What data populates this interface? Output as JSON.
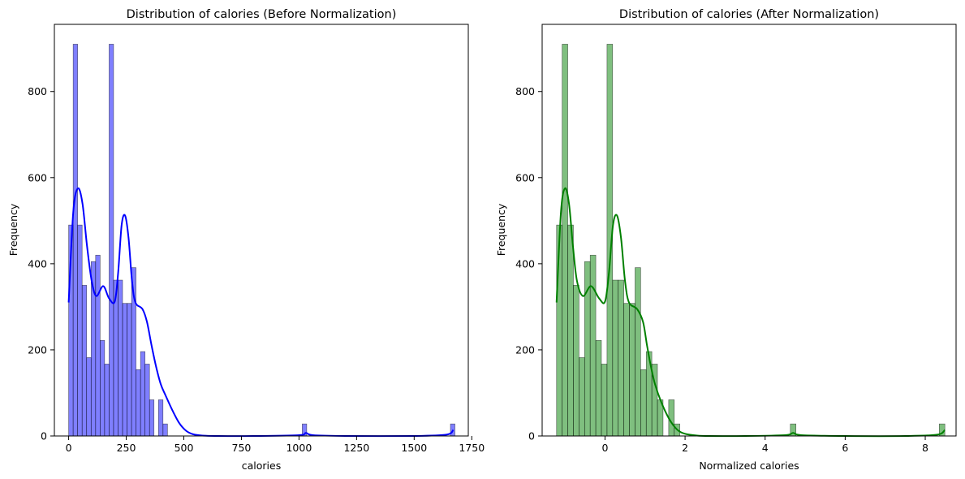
{
  "figure": {
    "background": "#ffffff"
  },
  "chart_data": [
    {
      "type": "bar",
      "subtype": "histogram-with-kde",
      "title": "Distribution of calories (Before Normalization)",
      "xlabel": "calories",
      "ylabel": "Frequency",
      "xlim": [
        -62,
        1735
      ],
      "ylim": [
        0,
        956
      ],
      "xticks": [
        0,
        250,
        500,
        750,
        1000,
        1250,
        1500,
        1750
      ],
      "yticks": [
        0,
        200,
        400,
        600,
        800
      ],
      "grid": false,
      "bar_color": "#0000ff",
      "bar_opacity": 0.5,
      "kde_color": "#0000ff",
      "bins": [
        {
          "x0": 0,
          "x1": 19.5,
          "count": 490
        },
        {
          "x0": 19.5,
          "x1": 39,
          "count": 910
        },
        {
          "x0": 39,
          "x1": 58.5,
          "count": 490
        },
        {
          "x0": 58.5,
          "x1": 78,
          "count": 350
        },
        {
          "x0": 78,
          "x1": 97.5,
          "count": 182
        },
        {
          "x0": 97.5,
          "x1": 117,
          "count": 405
        },
        {
          "x0": 117,
          "x1": 136.5,
          "count": 420
        },
        {
          "x0": 136.5,
          "x1": 156,
          "count": 222
        },
        {
          "x0": 156,
          "x1": 175.5,
          "count": 167
        },
        {
          "x0": 175.5,
          "x1": 195,
          "count": 910
        },
        {
          "x0": 195,
          "x1": 214.5,
          "count": 362
        },
        {
          "x0": 214.5,
          "x1": 234,
          "count": 362
        },
        {
          "x0": 234,
          "x1": 253.5,
          "count": 308
        },
        {
          "x0": 253.5,
          "x1": 273,
          "count": 308
        },
        {
          "x0": 273,
          "x1": 292.5,
          "count": 391
        },
        {
          "x0": 292.5,
          "x1": 312,
          "count": 154
        },
        {
          "x0": 312,
          "x1": 331.5,
          "count": 196
        },
        {
          "x0": 331.5,
          "x1": 351,
          "count": 167
        },
        {
          "x0": 351,
          "x1": 370.5,
          "count": 84
        },
        {
          "x0": 390,
          "x1": 409.5,
          "count": 84
        },
        {
          "x0": 409.5,
          "x1": 429,
          "count": 28
        },
        {
          "x0": 1014,
          "x1": 1033.5,
          "count": 28
        },
        {
          "x0": 1657.5,
          "x1": 1677,
          "count": 28
        }
      ],
      "kde": {
        "x": [
          0,
          20,
          40,
          60,
          80,
          100,
          120,
          150,
          175,
          200,
          215,
          230,
          245,
          260,
          275,
          290,
          320,
          340,
          360,
          380,
          400,
          420,
          450,
          480,
          510,
          540,
          580,
          650,
          800,
          1000,
          1030,
          1060,
          1200,
          1500,
          1640,
          1670
        ],
        "y": [
          310,
          520,
          575,
          540,
          440,
          360,
          325,
          348,
          320,
          312,
          380,
          490,
          512,
          460,
          360,
          310,
          295,
          265,
          210,
          160,
          120,
          95,
          60,
          30,
          12,
          4,
          1,
          0,
          0,
          2,
          7,
          2,
          0,
          0,
          3,
          14
        ]
      }
    },
    {
      "type": "bar",
      "subtype": "histogram-with-kde",
      "title": "Distribution of calories (After Normalization)",
      "xlabel": "Normalized calories",
      "ylabel": "Frequency",
      "xlim": [
        -1.57,
        8.77
      ],
      "ylim": [
        0,
        956
      ],
      "xticks": [
        0,
        2,
        4,
        6,
        8
      ],
      "yticks": [
        0,
        200,
        400,
        600,
        800
      ],
      "grid": false,
      "bar_color": "#008000",
      "bar_opacity": 0.5,
      "kde_color": "#008000",
      "bins": [
        {
          "x0": -1.21,
          "x1": -1.07,
          "count": 490
        },
        {
          "x0": -1.07,
          "x1": -0.93,
          "count": 910
        },
        {
          "x0": -0.93,
          "x1": -0.79,
          "count": 490
        },
        {
          "x0": -0.79,
          "x1": -0.65,
          "count": 350
        },
        {
          "x0": -0.65,
          "x1": -0.51,
          "count": 182
        },
        {
          "x0": -0.51,
          "x1": -0.37,
          "count": 405
        },
        {
          "x0": -0.37,
          "x1": -0.23,
          "count": 420
        },
        {
          "x0": -0.23,
          "x1": -0.09,
          "count": 222
        },
        {
          "x0": -0.09,
          "x1": 0.05,
          "count": 167
        },
        {
          "x0": 0.05,
          "x1": 0.19,
          "count": 910
        },
        {
          "x0": 0.19,
          "x1": 0.33,
          "count": 362
        },
        {
          "x0": 0.33,
          "x1": 0.47,
          "count": 362
        },
        {
          "x0": 0.47,
          "x1": 0.61,
          "count": 308
        },
        {
          "x0": 0.61,
          "x1": 0.75,
          "count": 308
        },
        {
          "x0": 0.75,
          "x1": 0.89,
          "count": 391
        },
        {
          "x0": 0.89,
          "x1": 1.03,
          "count": 154
        },
        {
          "x0": 1.03,
          "x1": 1.17,
          "count": 196
        },
        {
          "x0": 1.17,
          "x1": 1.31,
          "count": 167
        },
        {
          "x0": 1.31,
          "x1": 1.45,
          "count": 84
        },
        {
          "x0": 1.59,
          "x1": 1.73,
          "count": 84
        },
        {
          "x0": 1.73,
          "x1": 1.87,
          "count": 28
        },
        {
          "x0": 4.63,
          "x1": 4.77,
          "count": 28
        },
        {
          "x0": 8.35,
          "x1": 8.49,
          "count": 28
        }
      ],
      "kde": {
        "x": [
          -1.21,
          -1.1,
          -1.0,
          -0.9,
          -0.8,
          -0.7,
          -0.55,
          -0.35,
          -0.15,
          0.0,
          0.1,
          0.2,
          0.3,
          0.4,
          0.5,
          0.6,
          0.8,
          0.95,
          1.05,
          1.15,
          1.25,
          1.4,
          1.6,
          1.8,
          2.0,
          2.3,
          2.6,
          3.5,
          4.5,
          4.7,
          4.9,
          6.0,
          7.5,
          8.3,
          8.49
        ],
        "y": [
          310,
          520,
          575,
          540,
          440,
          360,
          325,
          348,
          320,
          312,
          380,
          490,
          512,
          460,
          360,
          310,
          295,
          265,
          210,
          160,
          120,
          80,
          40,
          15,
          5,
          1,
          0,
          0,
          2,
          7,
          2,
          0,
          0,
          3,
          14
        ]
      }
    }
  ]
}
